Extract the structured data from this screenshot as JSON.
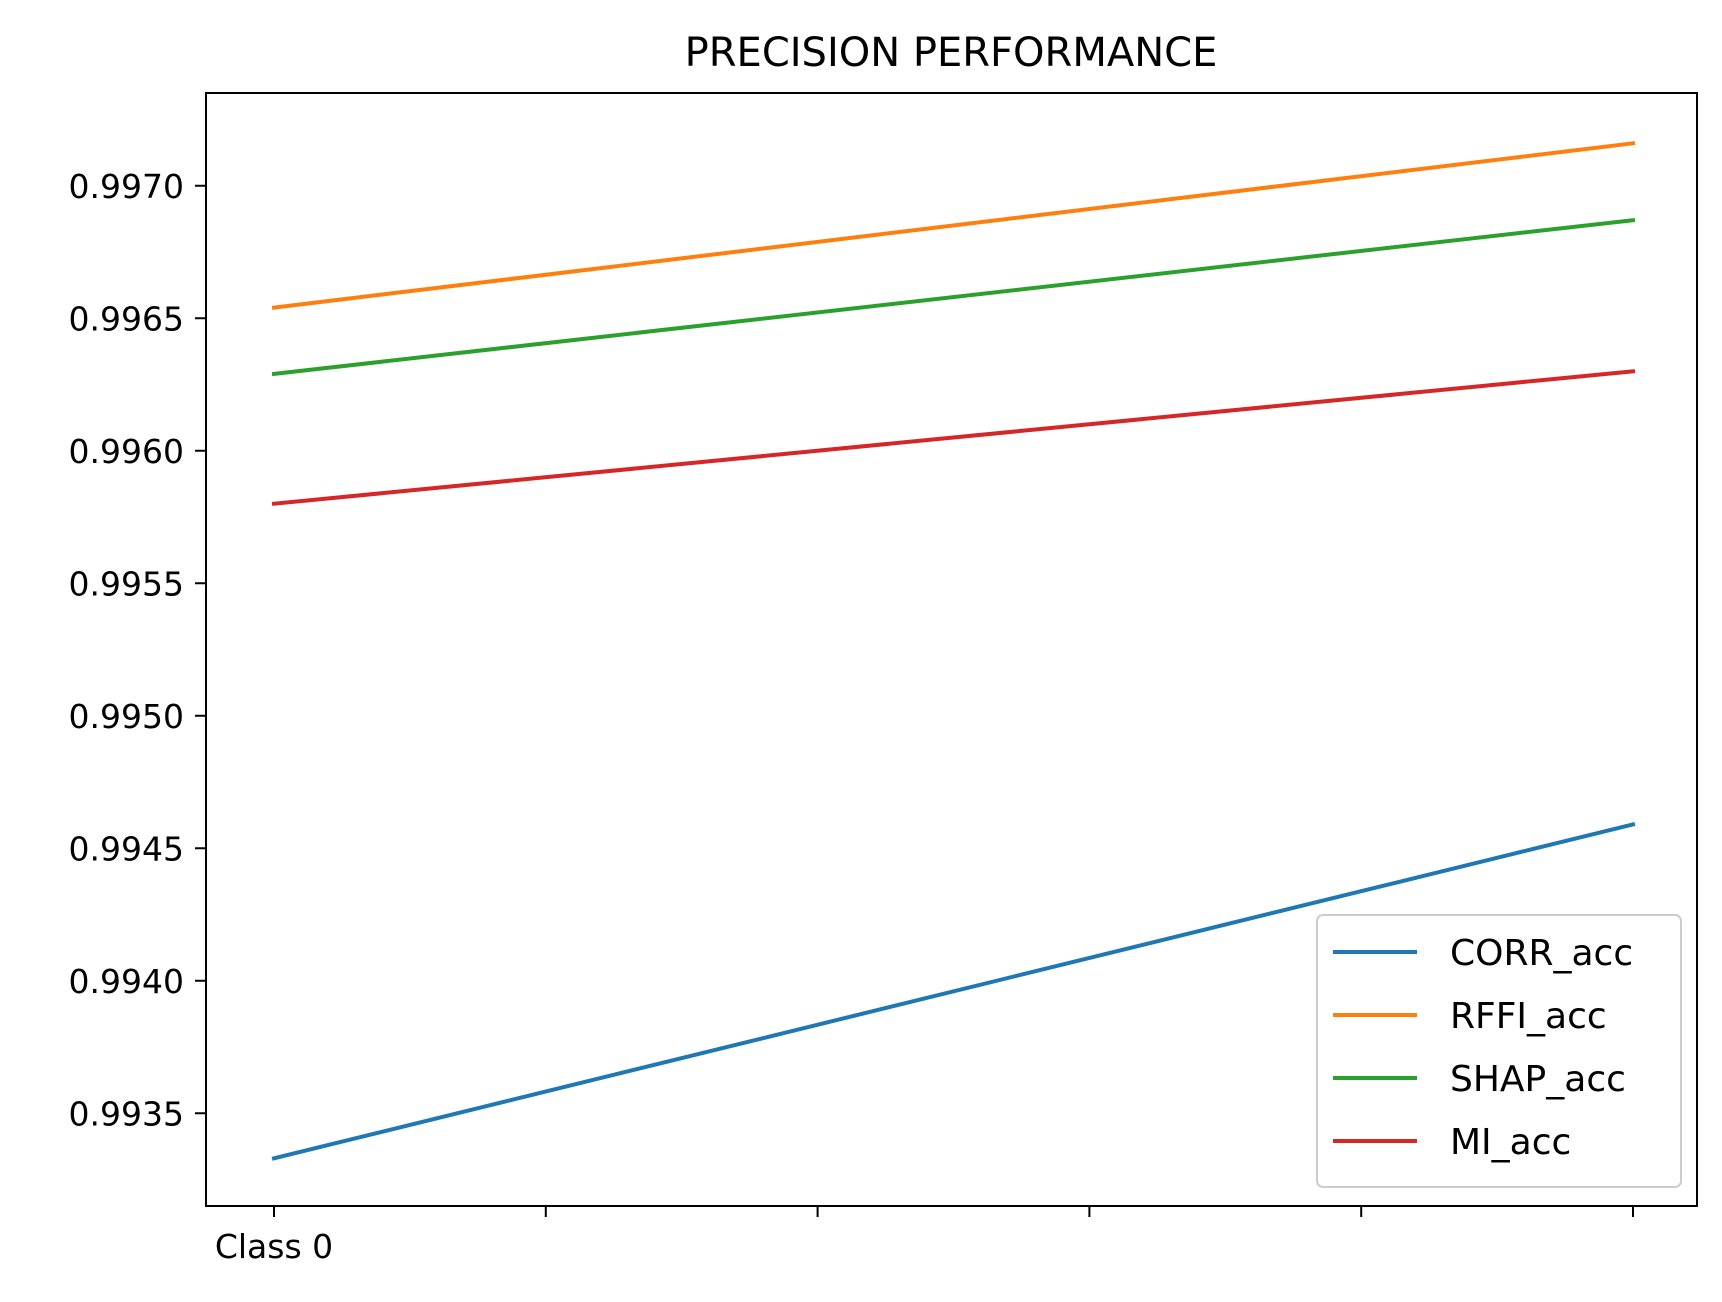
{
  "chart_data": {
    "type": "line",
    "title": "PRECISION PERFORMANCE",
    "xlabel": "",
    "ylabel": "",
    "x_tick_labels": [
      "Class 0",
      "",
      "",
      "",
      "",
      ""
    ],
    "x_positions": [
      0,
      1,
      2,
      3,
      4,
      5
    ],
    "ylim": [
      0.99315,
      0.99735
    ],
    "y_ticks": [
      0.9935,
      0.994,
      0.9945,
      0.995,
      0.9955,
      0.996,
      0.9965,
      0.997
    ],
    "y_tick_labels": [
      "0.9935",
      "0.9940",
      "0.9945",
      "0.9950",
      "0.9955",
      "0.9960",
      "0.9965",
      "0.9970"
    ],
    "grid": false,
    "legend_position": "lower-right",
    "series": [
      {
        "name": "CORR_acc",
        "color": "#1f77b4",
        "x": [
          0,
          5
        ],
        "values": [
          0.99333,
          0.99459
        ]
      },
      {
        "name": "RFFI_acc",
        "color": "#ff7f0e",
        "x": [
          0,
          5
        ],
        "values": [
          0.99654,
          0.99716
        ]
      },
      {
        "name": "SHAP_acc",
        "color": "#2ca02c",
        "x": [
          0,
          5
        ],
        "values": [
          0.99629,
          0.99687
        ]
      },
      {
        "name": "MI_acc",
        "color": "#d62728",
        "x": [
          0,
          5
        ],
        "values": [
          0.9958,
          0.9963
        ]
      }
    ]
  }
}
